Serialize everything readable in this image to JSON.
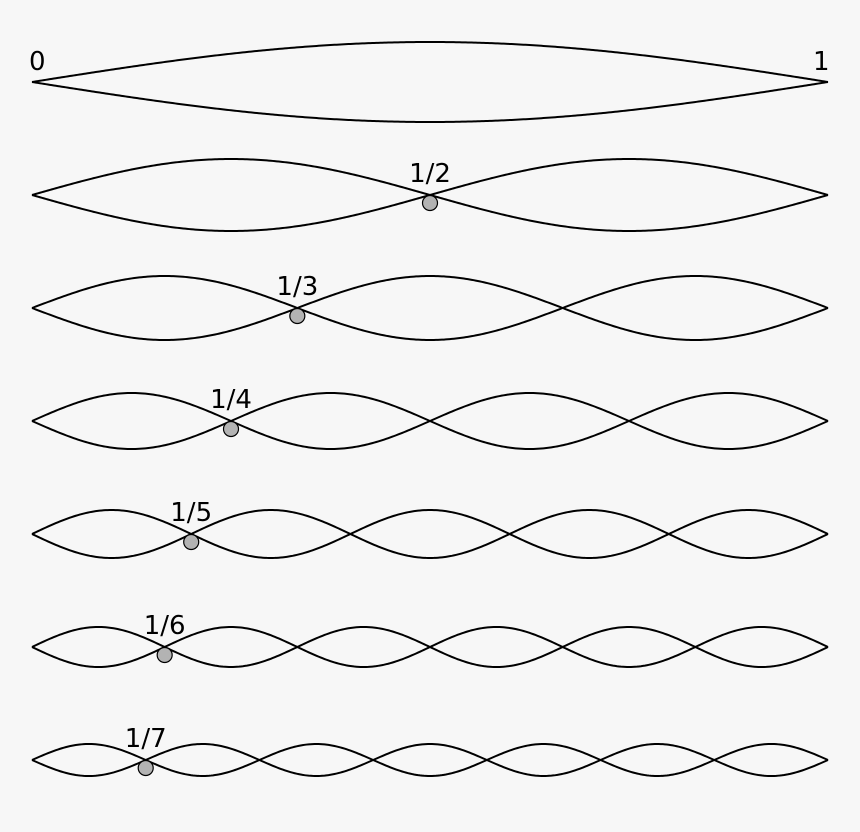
{
  "endpoints": {
    "start_label": "0",
    "end_label": "1"
  },
  "harmonics": [
    {
      "n": 1,
      "node_label": ""
    },
    {
      "n": 2,
      "node_label": "1/2"
    },
    {
      "n": 3,
      "node_label": "1/3"
    },
    {
      "n": 4,
      "node_label": "1/4"
    },
    {
      "n": 5,
      "node_label": "1/5"
    },
    {
      "n": 6,
      "node_label": "1/6"
    },
    {
      "n": 7,
      "node_label": "1/7"
    }
  ],
  "colors": {
    "background": "#f7f7f7",
    "curve": "#000000",
    "node_marker": "#b3b3b3"
  }
}
